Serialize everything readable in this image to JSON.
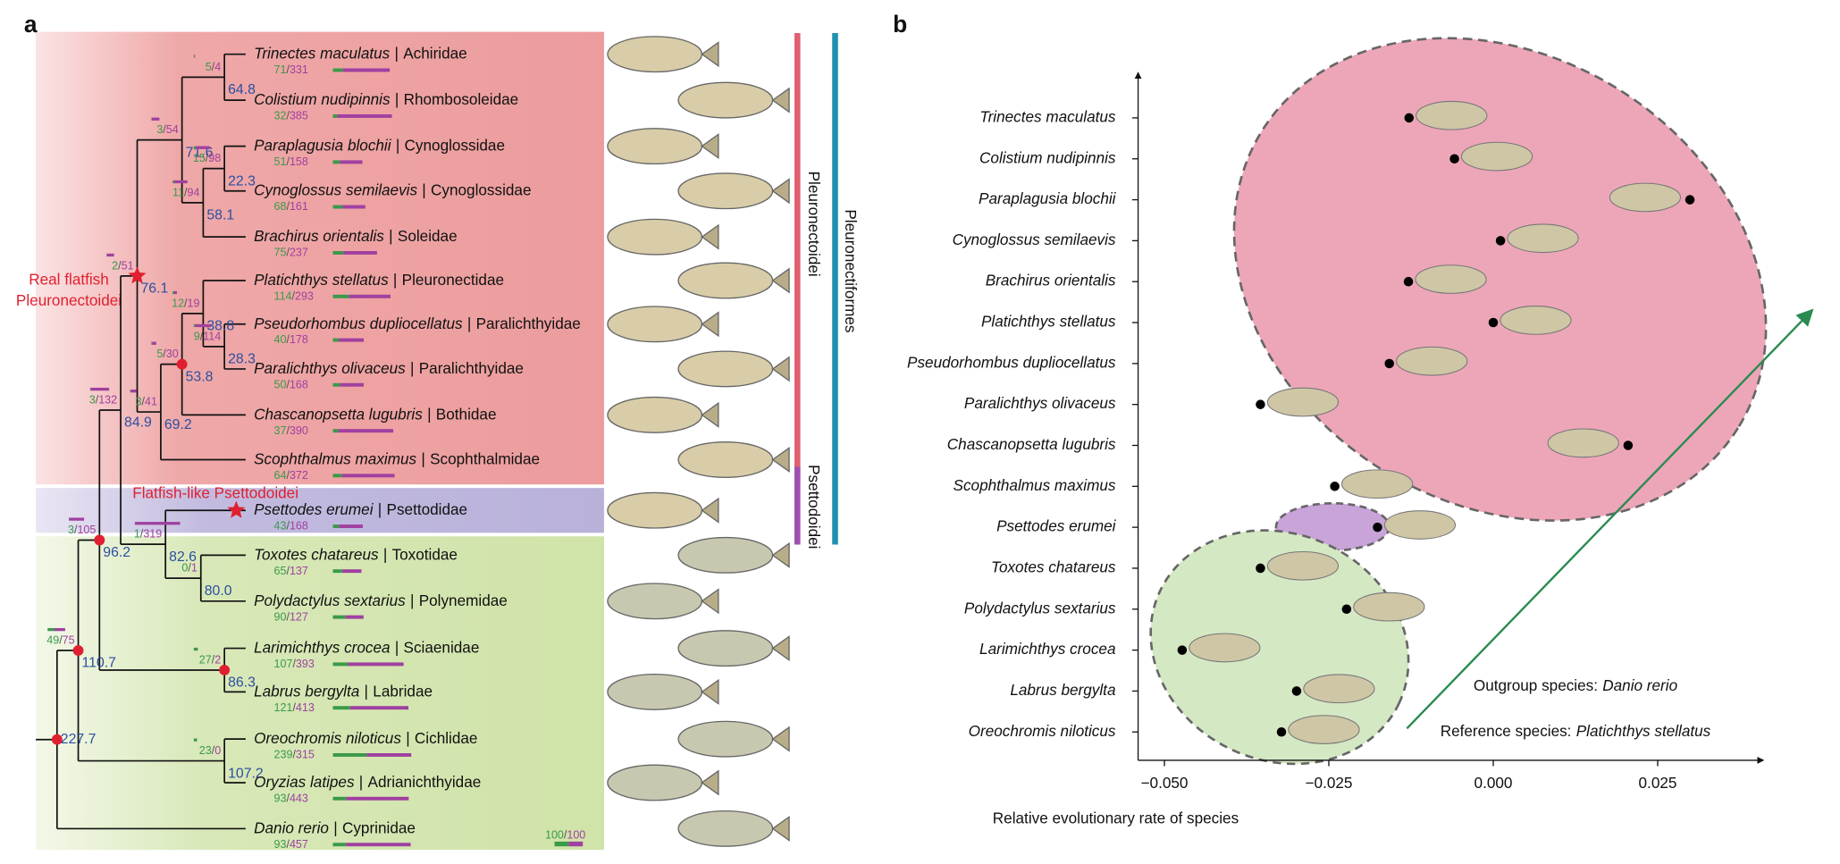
{
  "panel_a": {
    "label": "a",
    "name_separator": "|",
    "count_separator": "/",
    "species": [
      {
        "name": "Trinectes maculatus",
        "family": "Achiridae",
        "gained": 71,
        "lost": 331
      },
      {
        "name": "Colistium nudipinnis",
        "family": "Rhombosoleidae",
        "gained": 32,
        "lost": 385
      },
      {
        "name": "Paraplagusia blochii",
        "family": "Cynoglossidae",
        "gained": 51,
        "lost": 158
      },
      {
        "name": "Cynoglossus semilaevis",
        "family": "Cynoglossidae",
        "gained": 68,
        "lost": 161
      },
      {
        "name": "Brachirus orientalis",
        "family": "Soleidae",
        "gained": 75,
        "lost": 237
      },
      {
        "name": "Platichthys stellatus",
        "family": "Pleuronectidae",
        "gained": 114,
        "lost": 293
      },
      {
        "name": "Pseudorhombus dupliocellatus",
        "family": "Paralichthyidae",
        "gained": 40,
        "lost": 178
      },
      {
        "name": "Paralichthys olivaceus",
        "family": "Paralichthyidae",
        "gained": 50,
        "lost": 168
      },
      {
        "name": "Chascanopsetta lugubris",
        "family": "Bothidae",
        "gained": 37,
        "lost": 390
      },
      {
        "name": "Scophthalmus maximus",
        "family": "Scophthalmidae",
        "gained": 64,
        "lost": 372
      },
      {
        "name": "Psettodes erumei",
        "family": "Psettodidae",
        "gained": 43,
        "lost": 168
      },
      {
        "name": "Toxotes chatareus",
        "family": "Toxotidae",
        "gained": 65,
        "lost": 137
      },
      {
        "name": "Polydactylus sextarius",
        "family": "Polynemidae",
        "gained": 90,
        "lost": 127
      },
      {
        "name": "Larimichthys crocea",
        "family": "Sciaenidae",
        "gained": 107,
        "lost": 393
      },
      {
        "name": "Labrus bergylta",
        "family": "Labridae",
        "gained": 121,
        "lost": 413
      },
      {
        "name": "Oreochromis niloticus",
        "family": "Cichlidae",
        "gained": 239,
        "lost": 315
      },
      {
        "name": "Oryzias latipes",
        "family": "Adrianichthyidae",
        "gained": 93,
        "lost": 443
      },
      {
        "name": "Danio rerio",
        "family": "Cyprinidae",
        "gained": 93,
        "lost": 457
      }
    ],
    "nodes": [
      {
        "age": "227.7"
      },
      {
        "age": "110.7",
        "gained": 49,
        "lost": 75
      },
      {
        "age": "107.2",
        "gained": 23,
        "lost": 0
      },
      {
        "age": "96.2",
        "gained": 3,
        "lost": 105
      },
      {
        "age": "86.3",
        "gained": 27,
        "lost": 2
      },
      {
        "age": "84.9",
        "gained": 3,
        "lost": 132
      },
      {
        "age": "82.6",
        "gained": 1,
        "lost": 319
      },
      {
        "age": "80.0",
        "gained": 0,
        "lost": 1
      },
      {
        "age": "76.1",
        "gained": 2,
        "lost": 51
      },
      {
        "age": "71.6",
        "gained": 3,
        "lost": 54
      },
      {
        "age": "64.8",
        "gained": 5,
        "lost": 4
      },
      {
        "age": "58.1",
        "gained": 11,
        "lost": 94
      },
      {
        "age": "22.3",
        "gained": 15,
        "lost": 98
      },
      {
        "age": "69.2",
        "gained": 3,
        "lost": 41
      },
      {
        "age": "53.8",
        "gained": 5,
        "lost": 30
      },
      {
        "age": "38.8",
        "gained": 12,
        "lost": 19
      },
      {
        "age": "28.3",
        "gained": 9,
        "lost": 114
      }
    ],
    "clade_labels": {
      "real_flatfish": [
        "Real flatfish",
        "Pleuronectoidei"
      ],
      "psettodoidei": "Flatfish-like Psettodoidei"
    },
    "clade_bars": {
      "pleuronectoidei": "Pleuronectoidei",
      "psettodoidei": "Psettodoidei",
      "order": "Pleuronectiformes"
    },
    "legend": {
      "gained": 100,
      "lost": 100
    }
  },
  "chart_data": {
    "type": "scatter",
    "label": "b",
    "categories": [
      "Trinectes maculatus",
      "Colistium nudipinnis",
      "Paraplagusia blochii",
      "Cynoglossus semilaevis",
      "Brachirus orientalis",
      "Platichthys stellatus",
      "Pseudorhombus dupliocellatus",
      "Paralichthys olivaceus",
      "Chascanopsetta lugubris",
      "Scophthalmus maximus",
      "Psettodes erumei",
      "Toxotes chatareus",
      "Polydactylus sextarius",
      "Larimichthys crocea",
      "Labrus bergylta",
      "Oreochromis niloticus"
    ],
    "category_colors": [
      "#e0709a",
      "#e0709a",
      "#e0709a",
      "#e0709a",
      "#e0709a",
      "#e0709a",
      "#e0709a",
      "#e0709a",
      "#e0709a",
      "#e0709a",
      "#a060c0",
      "#111111",
      "#111111",
      "#111111",
      "#111111",
      "#111111"
    ],
    "values": [
      -0.0128,
      -0.0059,
      0.0299,
      0.0011,
      -0.0129,
      0.0,
      -0.0158,
      -0.0354,
      0.0205,
      -0.0241,
      -0.0176,
      -0.0354,
      -0.0223,
      -0.0473,
      -0.0299,
      -0.0322
    ],
    "color": "#000000",
    "xlim": [
      -0.054,
      0.041
    ],
    "xticks": [
      {
        "value": -0.05,
        "label": "−0.050"
      },
      {
        "value": -0.025,
        "label": "−0.025"
      },
      {
        "value": 0,
        "label": "0.000"
      },
      0.025
    ],
    "xlabel": "Relative evolutionary rate of species",
    "annotations": [
      {
        "text": "Outgroup species:",
        "species": "Danio rerio"
      },
      {
        "text": "Reference species:",
        "species": "Platichthys stellatus"
      }
    ]
  }
}
